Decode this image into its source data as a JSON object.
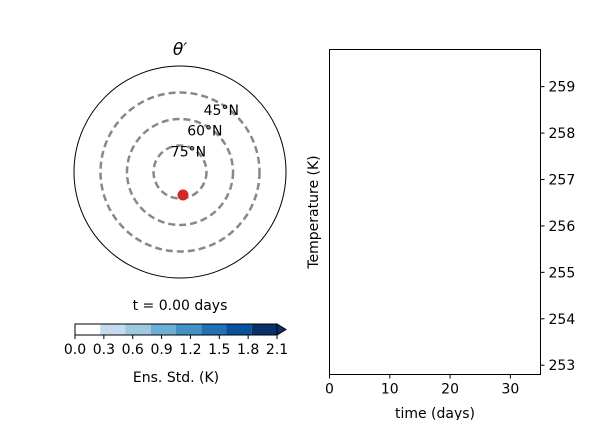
{
  "polar_panel": {
    "title": "θ′",
    "latitude_circles": [
      {
        "lat": 45,
        "label": "45°N"
      },
      {
        "lat": 60,
        "label": "60°N"
      },
      {
        "lat": 75,
        "label": "75°N"
      }
    ],
    "outer_boundary_lat": 30,
    "point": {
      "label": "",
      "color": "#d62728",
      "lat": 80,
      "lon_note": "south of pole"
    },
    "circle_color": "#888888",
    "time_text": "t = 0.00 days"
  },
  "colorbar": {
    "label": "Ens. Std. (K)",
    "ticks": [
      "0.0",
      "0.3",
      "0.6",
      "0.9",
      "1.2",
      "1.5",
      "1.8",
      "2.1"
    ],
    "colors": [
      "#ffffff",
      "#c6dbef",
      "#9ecae1",
      "#6baed6",
      "#4292c6",
      "#2171b5",
      "#08519c",
      "#08306b"
    ],
    "extend": "max"
  },
  "chart_data": {
    "type": "line",
    "xlabel": "time (days)",
    "ylabel": "Temperature (K)",
    "xlim": [
      0,
      35
    ],
    "ylim": [
      252.8,
      259.8
    ],
    "xticks": [
      0,
      10,
      20,
      30
    ],
    "yticks": [
      253,
      254,
      255,
      256,
      257,
      258,
      259
    ],
    "series": [],
    "yaxis_side": "right",
    "grid": false
  }
}
